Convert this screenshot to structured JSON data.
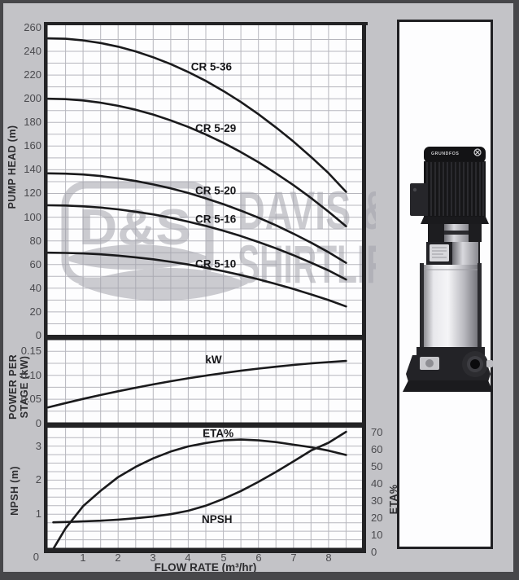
{
  "page": {
    "background": "#c3c3c7",
    "plot_bg": "#fdfdfe",
    "grid_color": "#b6b6bd",
    "curve_color": "#1a1a1c",
    "border_color": "#232325",
    "accent_text": "#2d2d30"
  },
  "watermark": {
    "dands": "D&S",
    "line1": "DAVIS &",
    "line2": "SHIRTLIFF",
    "color": "#a3a3ac"
  },
  "pump": {
    "motor_brand": "GRUNDFOS"
  },
  "axes": {
    "pump_head_title": "PUMP HEAD (m)",
    "power_title_line1": "POWER PER",
    "power_title_line2": "STAGE (kW)",
    "npsh_title": "NPSH (m)",
    "eta_title": "ETA%",
    "flow_title": "FLOW RATE (m³/hr)",
    "corner_zero": "0"
  },
  "chart_data": [
    {
      "id": "head",
      "type": "line",
      "ylabel": "PUMP HEAD (m)",
      "xlim": [
        0,
        9.0
      ],
      "ylim": [
        0,
        262
      ],
      "grid": {
        "x_step": 0.5,
        "y_step": 10
      },
      "yticks": [
        260,
        240,
        220,
        200,
        180,
        160,
        140,
        120,
        100,
        80,
        60,
        40,
        20,
        0
      ],
      "x_samples": [
        0,
        0.5,
        1,
        1.5,
        2,
        2.5,
        3,
        3.5,
        4,
        4.5,
        5,
        5.5,
        6,
        6.5,
        7,
        7.5,
        8,
        8.5
      ],
      "series": [
        {
          "name": "CR 5-36",
          "y": [
            251,
            250.6,
            249.2,
            247,
            243.9,
            239.9,
            235,
            229.2,
            222.5,
            215,
            206.5,
            197.2,
            186.9,
            175.8,
            163.8,
            150.9,
            137.1,
            121.4
          ]
        },
        {
          "name": "CR 5-29",
          "y": [
            200,
            199.6,
            198.5,
            196.6,
            194,
            190.7,
            186.6,
            181.7,
            176.2,
            169.8,
            162.8,
            154.9,
            146.4,
            137,
            127,
            116.2,
            104.6,
            92.3
          ]
        },
        {
          "name": "CR 5-20",
          "y": [
            137,
            136.7,
            136,
            134.7,
            132.8,
            130.5,
            127.6,
            124.3,
            120.4,
            115.9,
            111,
            105.5,
            99.6,
            93.1,
            86,
            78.5,
            70.4,
            61.4
          ]
        },
        {
          "name": "CR 5-16",
          "y": [
            110,
            109.8,
            109.1,
            108.1,
            106.6,
            104.6,
            102.3,
            99.5,
            96.2,
            92.6,
            88.5,
            84,
            79,
            73.7,
            67.9,
            61.6,
            55,
            47.4
          ]
        },
        {
          "name": "CR 5-10",
          "y": [
            70,
            69.8,
            69.4,
            68.6,
            67.5,
            66.1,
            64.4,
            62.3,
            60,
            57.3,
            54.4,
            51.1,
            47.5,
            43.6,
            39.4,
            34.8,
            30,
            24.6
          ]
        }
      ],
      "labels": [
        {
          "text": "CR 5-36",
          "x": 4.66,
          "y": 227
        },
        {
          "text": "CR 5-29",
          "x": 4.78,
          "y": 175
        },
        {
          "text": "CR 5-20",
          "x": 4.78,
          "y": 122.5
        },
        {
          "text": "CR 5-16",
          "x": 4.78,
          "y": 98.5
        },
        {
          "text": "CR 5-10",
          "x": 4.78,
          "y": 60.5
        }
      ]
    },
    {
      "id": "power",
      "type": "line",
      "ylabel": "POWER PER STAGE (kW)",
      "xlim": [
        0,
        9.0
      ],
      "ylim": [
        0,
        0.1735
      ],
      "grid": {
        "x_step": 0.5,
        "y_step": 0.025
      },
      "yticks": [
        0.15,
        0.1,
        0.05,
        0
      ],
      "ytick_labels": [
        "0.15",
        "0.10",
        "0.05",
        "0"
      ],
      "x_samples": [
        0,
        0.5,
        1,
        1.5,
        2,
        2.5,
        3,
        3.5,
        4,
        4.5,
        5,
        5.5,
        6,
        6.5,
        7,
        7.5,
        8,
        8.5
      ],
      "series": [
        {
          "name": "kW",
          "y": [
            0.033,
            0.042,
            0.0507,
            0.0589,
            0.0667,
            0.074,
            0.081,
            0.0876,
            0.0937,
            0.0993,
            0.1046,
            0.1095,
            0.1139,
            0.1179,
            0.1216,
            0.1248,
            0.1276,
            0.13
          ]
        }
      ],
      "labels": [
        {
          "text": "kW",
          "x": 4.72,
          "y": 0.133
        }
      ]
    },
    {
      "id": "npsh",
      "type": "line",
      "ylabel": "NPSH (m)",
      "y2label": "ETA%",
      "xlim": [
        0,
        9.0
      ],
      "ylim": [
        0,
        3.53
      ],
      "y2lim": [
        0,
        72
      ],
      "grid": {
        "x_step": 0.5,
        "y_step": 0.25
      },
      "yticks": [
        3,
        2,
        1
      ],
      "y2ticks": [
        70,
        60,
        50,
        40,
        30,
        20,
        10,
        0
      ],
      "xticks": [
        1,
        2,
        3,
        4,
        5,
        6,
        7,
        8
      ],
      "xlabel": "FLOW RATE (m³/hr)",
      "x_samples": [
        0.15,
        0.5,
        1,
        1.5,
        2,
        2.5,
        3,
        3.5,
        4,
        4.5,
        5,
        5.5,
        6,
        6.5,
        7,
        7.5,
        8,
        8.5
      ],
      "series": [
        {
          "name": "ETA%",
          "axis": "y2",
          "y": [
            2,
            14,
            27,
            36,
            44,
            50,
            55,
            59,
            62,
            64,
            65.5,
            66,
            65.5,
            64.5,
            63,
            61.5,
            59.5,
            57
          ]
        },
        {
          "name": "NPSH",
          "axis": "y",
          "y": [
            0.76,
            0.77,
            0.79,
            0.81,
            0.84,
            0.88,
            0.93,
            1.0,
            1.1,
            1.25,
            1.45,
            1.68,
            1.95,
            2.24,
            2.55,
            2.87,
            3.1,
            3.42
          ]
        }
      ],
      "labels": [
        {
          "text": "ETA%",
          "x": 4.85,
          "y": 69.7,
          "axis": "y2"
        },
        {
          "text": "NPSH",
          "x": 4.82,
          "y": 0.85,
          "axis": "y"
        }
      ]
    }
  ]
}
